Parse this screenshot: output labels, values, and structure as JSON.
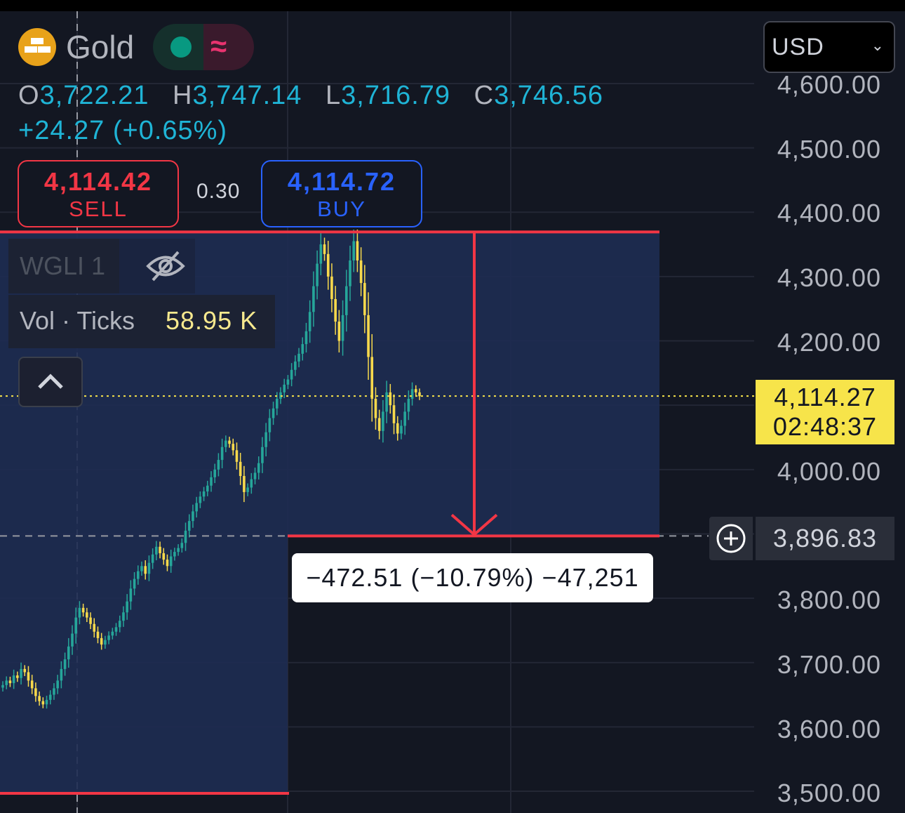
{
  "symbol": {
    "name": "Gold",
    "logo": "gold-bars-icon",
    "status": "market-open-dot",
    "wave": "≈"
  },
  "ohlc": {
    "o_key": "O",
    "o": "3,722.21",
    "h_key": "H",
    "h": "3,747.14",
    "l_key": "L",
    "l": "3,716.79",
    "c_key": "C",
    "c": "3,746.56"
  },
  "change": "+24.27 (+0.65%)",
  "trade": {
    "sell_price": "4,114.42",
    "sell_label": "SELL",
    "spread": "0.30",
    "buy_price": "4,114.72",
    "buy_label": "BUY"
  },
  "indicator": {
    "name": "WGLI 1",
    "visibility_icon": "eye-off-icon",
    "volume_label": "Vol · Ticks",
    "volume_value": "58.95 K"
  },
  "currency": {
    "value": "USD"
  },
  "y_axis": {
    "ticks": [
      "4,600.00",
      "4,500.00",
      "4,400.00",
      "4,300.00",
      "4,200.00",
      "4,000.00",
      "3,800.00",
      "3,700.00",
      "3,600.00",
      "3,500.00"
    ]
  },
  "price_tag": {
    "price": "4,114.27",
    "countdown": "02:48:37"
  },
  "crosshair": {
    "price": "3,896.83"
  },
  "measure": {
    "label": "−472.51 (−10.79%) −47,251"
  },
  "colors": {
    "up": "#26a69a",
    "down": "#f7d94c",
    "measure_line": "#f23645",
    "measure_fill": "#1e2c52",
    "last_price": "#f7e44a"
  },
  "chart_data": {
    "type": "candlestick",
    "ylim": [
      3500,
      4600
    ],
    "last_price": 4114.27,
    "crosshair_price": 3896.83,
    "measure": {
      "from": 4369.34,
      "to": 3896.83,
      "change": -472.51,
      "change_pct": -10.79
    },
    "closes": [
      3665,
      3672,
      3668,
      3680,
      3676,
      3690,
      3685,
      3672,
      3660,
      3648,
      3640,
      3635,
      3642,
      3650,
      3660,
      3672,
      3690,
      3705,
      3725,
      3745,
      3770,
      3785,
      3778,
      3770,
      3760,
      3748,
      3738,
      3728,
      3735,
      3742,
      3748,
      3755,
      3765,
      3778,
      3795,
      3815,
      3830,
      3842,
      3850,
      3838,
      3855,
      3868,
      3880,
      3870,
      3860,
      3850,
      3865,
      3872,
      3878,
      3886,
      3905,
      3920,
      3935,
      3948,
      3958,
      3966,
      3975,
      3988,
      4000,
      4015,
      4035,
      4045,
      4040,
      4030,
      4012,
      3990,
      3965,
      3972,
      3985,
      3995,
      4010,
      4035,
      4058,
      4080,
      4095,
      4110,
      4120,
      4132,
      4140,
      4155,
      4168,
      4180,
      4195,
      4215,
      4245,
      4285,
      4320,
      4350,
      4335,
      4300,
      4265,
      4230,
      4200,
      4240,
      4285,
      4325,
      4355,
      4325,
      4290,
      4240,
      4175,
      4110,
      4080,
      4060,
      4090,
      4120,
      4100,
      4072,
      4056,
      4068,
      4090,
      4110,
      4125,
      4120,
      4114
    ]
  }
}
